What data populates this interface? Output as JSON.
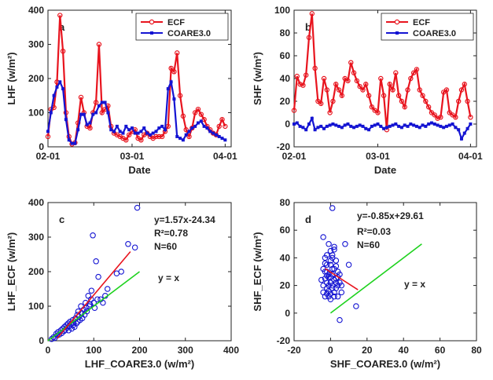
{
  "chart_data": [
    {
      "id": "a",
      "type": "line",
      "panel_label": "a",
      "xlabel": "Date",
      "ylabel": "LHF (w/m²)",
      "xlim": [
        0,
        61
      ],
      "ylim": [
        0,
        400
      ],
      "xticks": [
        0,
        28,
        59
      ],
      "xtick_labels": [
        "02-01",
        "03-01",
        "04-01"
      ],
      "yticks": [
        0,
        100,
        200,
        300,
        400
      ],
      "legend_position": "top-right",
      "series": [
        {
          "name": "ECF",
          "color": "#e8141e",
          "marker": "circle",
          "x": [
            0,
            1,
            2,
            3,
            4,
            5,
            6,
            7,
            8,
            9,
            10,
            11,
            12,
            13,
            14,
            15,
            16,
            17,
            18,
            19,
            20,
            21,
            22,
            23,
            24,
            25,
            26,
            27,
            28,
            29,
            30,
            31,
            32,
            33,
            34,
            35,
            36,
            37,
            38,
            39,
            40,
            41,
            42,
            43,
            44,
            45,
            46,
            47,
            48,
            49,
            50,
            51,
            52,
            53,
            54,
            55,
            56,
            57,
            58,
            59
          ],
          "y": [
            30,
            110,
            115,
            190,
            385,
            280,
            100,
            30,
            8,
            12,
            70,
            145,
            100,
            60,
            55,
            100,
            130,
            300,
            100,
            110,
            120,
            60,
            40,
            35,
            30,
            25,
            20,
            35,
            45,
            50,
            25,
            20,
            35,
            40,
            30,
            25,
            30,
            30,
            30,
            45,
            60,
            230,
            220,
            275,
            150,
            90,
            50,
            30,
            55,
            100,
            110,
            95,
            80,
            60,
            50,
            40,
            35,
            60,
            80,
            60
          ]
        },
        {
          "name": "COARE3.0",
          "color": "#1414d2",
          "marker": "square",
          "x": [
            0,
            1,
            2,
            3,
            4,
            5,
            6,
            7,
            8,
            9,
            10,
            11,
            12,
            13,
            14,
            15,
            16,
            17,
            18,
            19,
            20,
            21,
            22,
            23,
            24,
            25,
            26,
            27,
            28,
            29,
            30,
            31,
            32,
            33,
            34,
            35,
            36,
            37,
            38,
            39,
            40,
            41,
            42,
            43,
            44,
            45,
            46,
            47,
            48,
            49,
            50,
            51,
            52,
            53,
            54,
            55,
            56,
            57,
            58,
            59
          ],
          "y": [
            45,
            100,
            150,
            175,
            190,
            170,
            80,
            20,
            10,
            10,
            50,
            95,
            95,
            65,
            70,
            95,
            100,
            120,
            130,
            130,
            100,
            50,
            45,
            60,
            45,
            40,
            60,
            50,
            55,
            40,
            40,
            45,
            55,
            40,
            35,
            40,
            45,
            55,
            60,
            50,
            170,
            190,
            140,
            30,
            25,
            20,
            35,
            45,
            55,
            60,
            70,
            75,
            60,
            55,
            45,
            40,
            35,
            30,
            25,
            20
          ]
        }
      ]
    },
    {
      "id": "b",
      "type": "line",
      "panel_label": "b",
      "xlabel": "Date",
      "ylabel": "SHF (w/m²)",
      "xlim": [
        0,
        61
      ],
      "ylim": [
        -20,
        100
      ],
      "xticks": [
        0,
        28,
        59
      ],
      "xtick_labels": [
        "02-01",
        "03-01",
        "04-01"
      ],
      "yticks": [
        -20,
        0,
        20,
        40,
        60,
        80,
        100
      ],
      "legend_position": "top-right",
      "series": [
        {
          "name": "ECF",
          "color": "#e8141e",
          "marker": "circle",
          "x": [
            0,
            1,
            2,
            3,
            4,
            5,
            6,
            7,
            8,
            9,
            10,
            11,
            12,
            13,
            14,
            15,
            16,
            17,
            18,
            19,
            20,
            21,
            22,
            23,
            24,
            25,
            26,
            27,
            28,
            29,
            30,
            31,
            32,
            33,
            34,
            35,
            36,
            37,
            38,
            39,
            40,
            41,
            42,
            43,
            44,
            45,
            46,
            47,
            48,
            49,
            50,
            51,
            52,
            53,
            54,
            55,
            56,
            57,
            58,
            59
          ],
          "y": [
            12,
            42,
            35,
            34,
            43,
            76,
            97,
            49,
            20,
            18,
            40,
            30,
            10,
            20,
            35,
            30,
            25,
            40,
            38,
            54,
            45,
            38,
            33,
            30,
            35,
            25,
            15,
            12,
            10,
            40,
            25,
            -5,
            35,
            30,
            45,
            25,
            20,
            15,
            30,
            40,
            45,
            48,
            30,
            25,
            20,
            15,
            10,
            8,
            5,
            6,
            28,
            30,
            10,
            8,
            6,
            20,
            30,
            35,
            20,
            6
          ]
        },
        {
          "name": "COARE3.0",
          "color": "#1414d2",
          "marker": "square",
          "x": [
            0,
            1,
            2,
            3,
            4,
            5,
            6,
            7,
            8,
            9,
            10,
            11,
            12,
            13,
            14,
            15,
            16,
            17,
            18,
            19,
            20,
            21,
            22,
            23,
            24,
            25,
            26,
            27,
            28,
            29,
            30,
            31,
            32,
            33,
            34,
            35,
            36,
            37,
            38,
            39,
            40,
            41,
            42,
            43,
            44,
            45,
            46,
            47,
            48,
            49,
            50,
            51,
            52,
            53,
            54,
            55,
            56,
            57,
            58,
            59
          ],
          "y": [
            0,
            1,
            -2,
            -3,
            -5,
            0,
            5,
            -5,
            -3,
            -2,
            -4,
            -2,
            -1,
            0,
            -1,
            -2,
            -3,
            -1,
            0,
            -2,
            -3,
            -2,
            -1,
            -2,
            -4,
            -5,
            -2,
            -1,
            0,
            -2,
            -4,
            -3,
            -2,
            -1,
            0,
            -2,
            -3,
            -1,
            -2,
            0,
            -1,
            -2,
            -3,
            -1,
            -2,
            0,
            1,
            0,
            -1,
            -2,
            -3,
            -2,
            -1,
            0,
            -3,
            -5,
            -13,
            -8,
            -4,
            0
          ]
        }
      ]
    },
    {
      "id": "c",
      "type": "scatter",
      "panel_label": "c",
      "xlabel": "LHF_COARE3.0 (w/m²)",
      "ylabel": "LHF_ECF (w/m²)",
      "xlim": [
        0,
        400
      ],
      "ylim": [
        0,
        400
      ],
      "xticks": [
        0,
        100,
        200,
        300,
        400
      ],
      "yticks": [
        0,
        100,
        200,
        300,
        400
      ],
      "annotations": [
        "y=1.57x-24.34",
        "R²=0.78",
        "N=60",
        "y = x"
      ],
      "points": [
        [
          8,
          5
        ],
        [
          12,
          10
        ],
        [
          15,
          8
        ],
        [
          18,
          20
        ],
        [
          20,
          15
        ],
        [
          22,
          25
        ],
        [
          25,
          18
        ],
        [
          28,
          30
        ],
        [
          30,
          22
        ],
        [
          32,
          35
        ],
        [
          35,
          28
        ],
        [
          36,
          40
        ],
        [
          38,
          32
        ],
        [
          40,
          45
        ],
        [
          42,
          38
        ],
        [
          44,
          50
        ],
        [
          45,
          30
        ],
        [
          46,
          42
        ],
        [
          48,
          55
        ],
        [
          50,
          48
        ],
        [
          52,
          35
        ],
        [
          54,
          60
        ],
        [
          55,
          45
        ],
        [
          56,
          52
        ],
        [
          58,
          40
        ],
        [
          60,
          65
        ],
        [
          62,
          50
        ],
        [
          64,
          75
        ],
        [
          65,
          55
        ],
        [
          66,
          85
        ],
        [
          68,
          70
        ],
        [
          70,
          60
        ],
        [
          72,
          100
        ],
        [
          74,
          80
        ],
        [
          75,
          65
        ],
        [
          78,
          90
        ],
        [
          80,
          75
        ],
        [
          82,
          110
        ],
        [
          84,
          95
        ],
        [
          85,
          85
        ],
        [
          88,
          130
        ],
        [
          90,
          100
        ],
        [
          92,
          105
        ],
        [
          94,
          120
        ],
        [
          95,
          145
        ],
        [
          98,
          305
        ],
        [
          100,
          110
        ],
        [
          102,
          95
        ],
        [
          105,
          230
        ],
        [
          108,
          120
        ],
        [
          110,
          185
        ],
        [
          115,
          120
        ],
        [
          120,
          110
        ],
        [
          125,
          130
        ],
        [
          130,
          150
        ],
        [
          150,
          195
        ],
        [
          160,
          200
        ],
        [
          175,
          280
        ],
        [
          190,
          270
        ],
        [
          195,
          385
        ]
      ],
      "fit_line": {
        "x": [
          20,
          180
        ],
        "y": [
          7,
          258
        ],
        "color": "#e8141e"
      },
      "identity_line": {
        "x": [
          0,
          200
        ],
        "y": [
          0,
          200
        ],
        "color": "#1ed21e"
      },
      "point_color": "#1414d2"
    },
    {
      "id": "d",
      "type": "scatter",
      "panel_label": "d",
      "xlabel": "SHF_COARE3.0 (w/m²)",
      "ylabel": "SHF_ECF (w/m²)",
      "xlim": [
        -20,
        80
      ],
      "ylim": [
        -20,
        80
      ],
      "xticks": [
        -20,
        0,
        20,
        40,
        60,
        80
      ],
      "yticks": [
        -20,
        0,
        20,
        40,
        60,
        80
      ],
      "annotations": [
        "y=-0.85x+29.61",
        "R²=0.03",
        "N=60",
        "y = x"
      ],
      "points": [
        [
          -4,
          55
        ],
        [
          -3,
          40
        ],
        [
          -2,
          30
        ],
        [
          -2,
          22
        ],
        [
          -1,
          50
        ],
        [
          0,
          45
        ],
        [
          0,
          35
        ],
        [
          1,
          28
        ],
        [
          1,
          20
        ],
        [
          2,
          15
        ],
        [
          -3,
          25
        ],
        [
          -2,
          18
        ],
        [
          -1,
          12
        ],
        [
          0,
          10
        ],
        [
          1,
          40
        ],
        [
          2,
          32
        ],
        [
          3,
          25
        ],
        [
          4,
          30
        ],
        [
          5,
          22
        ],
        [
          -4,
          15
        ],
        [
          -3,
          12
        ],
        [
          -2,
          35
        ],
        [
          -1,
          28
        ],
        [
          0,
          22
        ],
        [
          1,
          18
        ],
        [
          2,
          48
        ],
        [
          3,
          38
        ],
        [
          4,
          20
        ],
        [
          5,
          -5
        ],
        [
          6,
          15
        ],
        [
          -4,
          20
        ],
        [
          -3,
          30
        ],
        [
          -2,
          14
        ],
        [
          -1,
          26
        ],
        [
          0,
          38
        ],
        [
          1,
          42
        ],
        [
          2,
          24
        ],
        [
          3,
          18
        ],
        [
          4,
          12
        ],
        [
          5,
          28
        ],
        [
          -5,
          24
        ],
        [
          -4,
          32
        ],
        [
          -3,
          36
        ],
        [
          -2,
          42
        ],
        [
          -1,
          16
        ],
        [
          0,
          14
        ],
        [
          1,
          76
        ],
        [
          2,
          46
        ],
        [
          3,
          34
        ],
        [
          4,
          26
        ],
        [
          6,
          20
        ],
        [
          8,
          50
        ],
        [
          10,
          35
        ],
        [
          14,
          5
        ],
        [
          -1,
          20
        ],
        [
          0,
          26
        ],
        [
          1,
          32
        ],
        [
          2,
          12
        ],
        [
          3,
          22
        ],
        [
          -2,
          27
        ]
      ],
      "fit_line": {
        "x": [
          -3,
          15
        ],
        "y": [
          32.2,
          16.9
        ],
        "color": "#e8141e"
      },
      "identity_line": {
        "x": [
          0,
          50
        ],
        "y": [
          0,
          50
        ],
        "color": "#1ed21e"
      },
      "point_color": "#1414d2"
    }
  ]
}
